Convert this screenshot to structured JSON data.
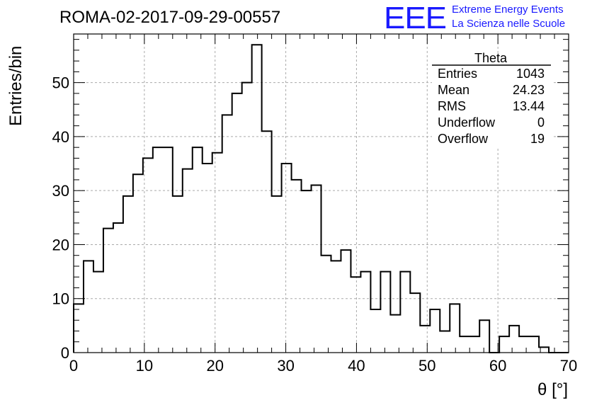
{
  "header": {
    "run_title": "ROMA-02-2017-09-29-00557"
  },
  "logo": {
    "mark": "EEE",
    "line1": "Extreme Energy Events",
    "line2": "La Scienza nelle Scuole",
    "color": "#1a1aff"
  },
  "stats_box": {
    "title": "Theta",
    "rows": [
      {
        "label": "Entries",
        "value": "1043"
      },
      {
        "label": "Mean",
        "value": "24.23"
      },
      {
        "label": "RMS",
        "value": "13.44"
      },
      {
        "label": "Underflow",
        "value": "0"
      },
      {
        "label": "Overflow",
        "value": "19"
      }
    ]
  },
  "chart_data": {
    "type": "histogram",
    "xlabel": "θ [°]",
    "ylabel": "Entries/bin",
    "xlim": [
      0,
      70
    ],
    "ylim": [
      0,
      59
    ],
    "xticks": [
      0,
      10,
      20,
      30,
      40,
      50,
      60,
      70
    ],
    "yticks": [
      0,
      10,
      20,
      30,
      40,
      50
    ],
    "grid": true,
    "bin_width": 1.4,
    "bin_edges_start": 0,
    "values": [
      9,
      17,
      15,
      23,
      24,
      29,
      33,
      36,
      38,
      38,
      29,
      34,
      38,
      35,
      37,
      44,
      48,
      50,
      57,
      41,
      29,
      35,
      32,
      30,
      31,
      18,
      17,
      19,
      14,
      15,
      8,
      15,
      7,
      15,
      11,
      5,
      8,
      4,
      9,
      3,
      3,
      6,
      0,
      3,
      5,
      3,
      3,
      1,
      0,
      0
    ],
    "line_color": "#000000"
  }
}
